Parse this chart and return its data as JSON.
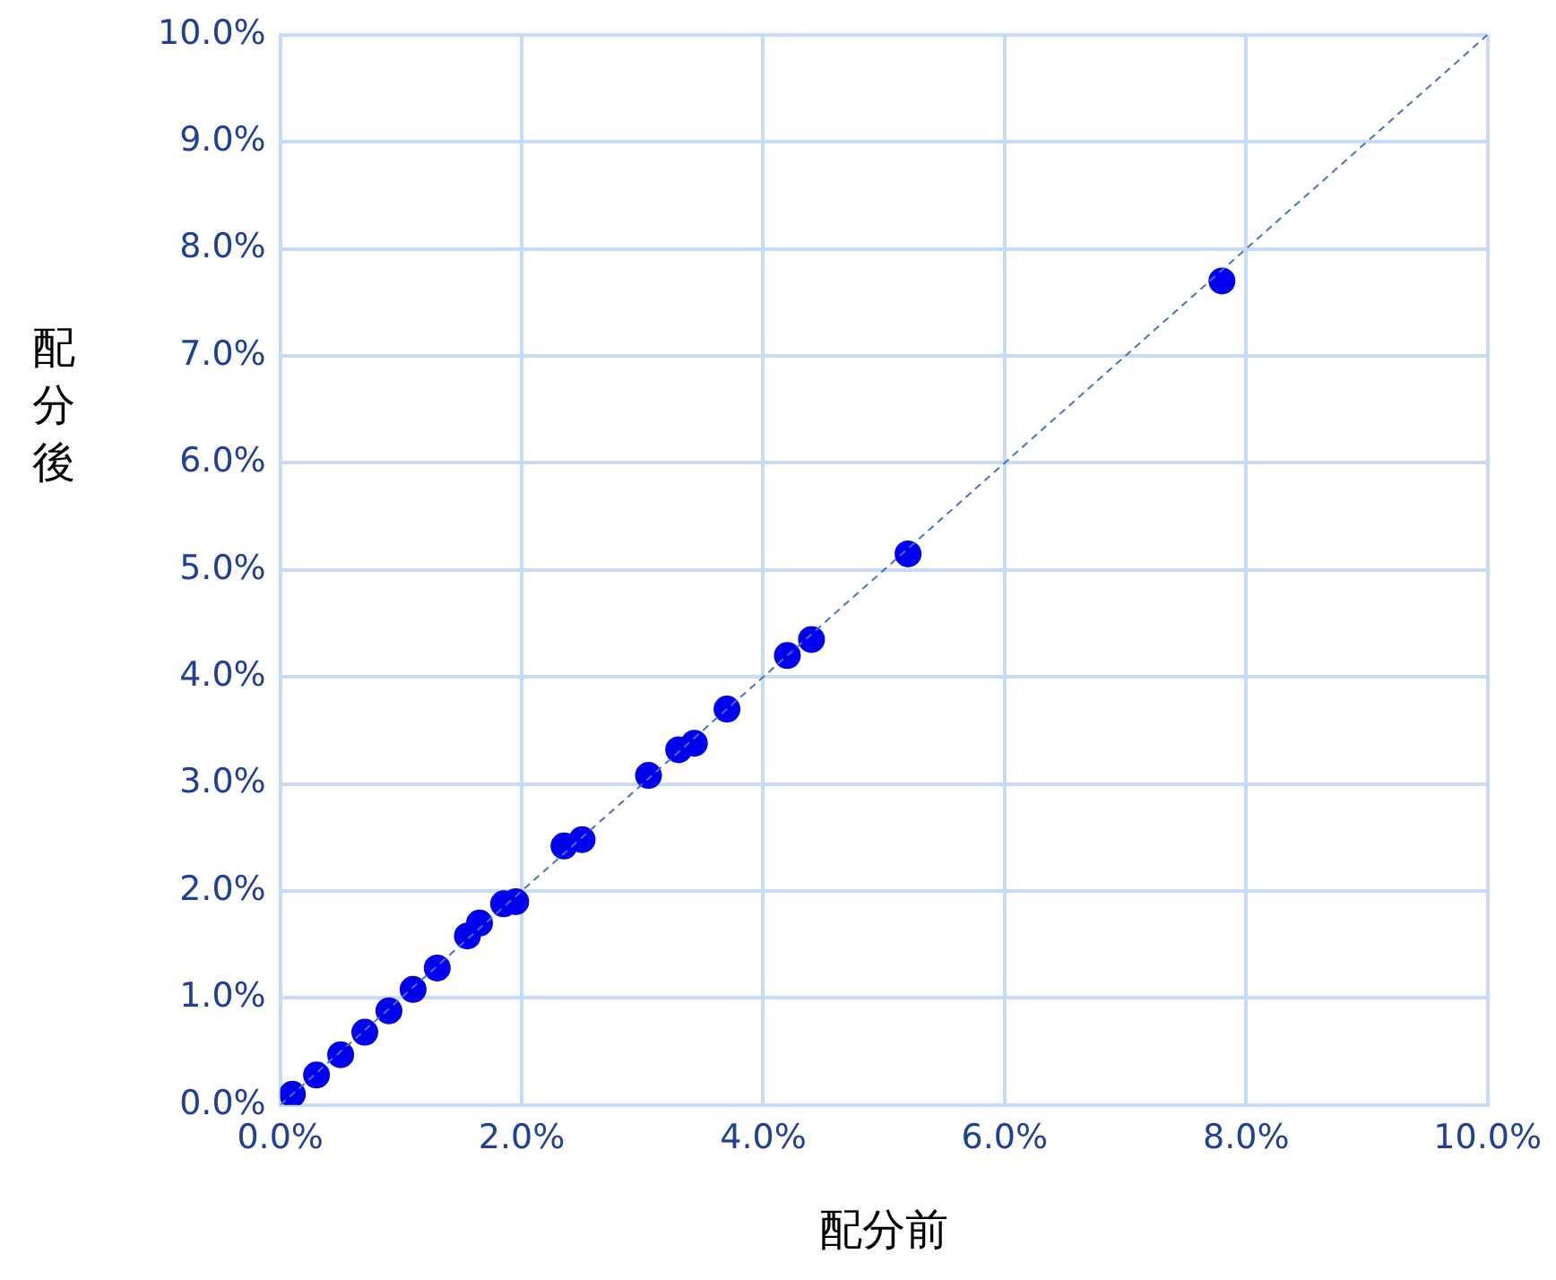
{
  "chart_data": {
    "type": "scatter",
    "xlabel": "配分前",
    "ylabel": "配分後",
    "xlim": [
      0,
      10
    ],
    "ylim": [
      0,
      10
    ],
    "xticks": [
      {
        "value": 0,
        "label": "0.0%"
      },
      {
        "value": 2,
        "label": "2.0%"
      },
      {
        "value": 4,
        "label": "4.0%"
      },
      {
        "value": 6,
        "label": "6.0%"
      },
      {
        "value": 8,
        "label": "8.0%"
      },
      {
        "value": 10,
        "label": "10.0%"
      }
    ],
    "yticks": [
      {
        "value": 0,
        "label": "0.0%"
      },
      {
        "value": 1,
        "label": "1.0%"
      },
      {
        "value": 2,
        "label": "2.0%"
      },
      {
        "value": 3,
        "label": "3.0%"
      },
      {
        "value": 4,
        "label": "4.0%"
      },
      {
        "value": 5,
        "label": "5.0%"
      },
      {
        "value": 6,
        "label": "6.0%"
      },
      {
        "value": 7,
        "label": "7.0%"
      },
      {
        "value": 8,
        "label": "8.0%"
      },
      {
        "value": 9,
        "label": "9.0%"
      },
      {
        "value": 10,
        "label": "10.0%"
      }
    ],
    "grid": true,
    "marker": "circle",
    "series": [
      {
        "color": "#0000ee",
        "x": [
          0.1,
          0.3,
          0.5,
          0.7,
          0.9,
          1.1,
          1.3,
          1.55,
          1.65,
          1.85,
          1.95,
          2.35,
          2.5,
          3.05,
          3.3,
          3.43,
          3.7,
          4.2,
          4.4,
          5.2,
          7.8
        ],
        "values": [
          0.1,
          0.28,
          0.47,
          0.68,
          0.88,
          1.08,
          1.28,
          1.58,
          1.7,
          1.88,
          1.9,
          2.42,
          2.48,
          3.08,
          3.32,
          3.38,
          3.7,
          4.2,
          4.35,
          5.15,
          7.7
        ]
      },
      {
        "type": "line",
        "color": "#4472c4",
        "line_style": "dashed",
        "marker": "none",
        "x": [
          0,
          10
        ],
        "values": [
          0,
          10
        ]
      }
    ]
  }
}
